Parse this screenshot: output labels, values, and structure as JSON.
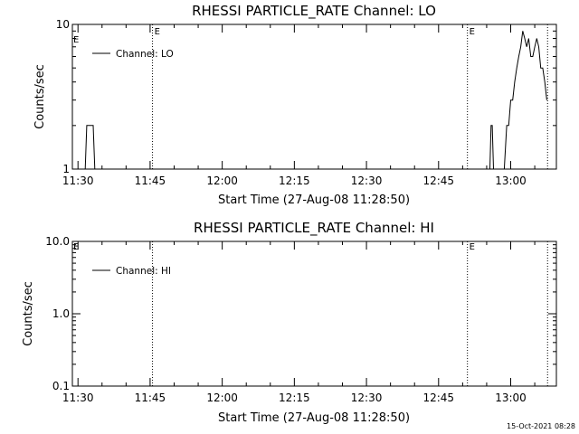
{
  "footer": {
    "timestamp": "15-Oct-2021 08:28"
  },
  "chart_data": [
    {
      "type": "line",
      "title": "RHESSI PARTICLE_RATE Channel: LO",
      "xlabel": "Start Time (27-Aug-08 11:28:50)",
      "ylabel": "Counts/sec",
      "y_scale": "log",
      "xlim": [
        "11:28:50",
        "13:09:30"
      ],
      "ylim": [
        1,
        10
      ],
      "x_ticks": [
        "11:30",
        "11:45",
        "12:00",
        "12:15",
        "12:30",
        "12:45",
        "13:00"
      ],
      "y_ticks": [
        "1",
        "10"
      ],
      "event_lines": [
        {
          "time": "11:45:30",
          "label": "E"
        },
        {
          "time": "12:51:00",
          "label": "E"
        },
        {
          "time": "13:07:40",
          "label": ""
        }
      ],
      "start_marker": "E",
      "legend": {
        "position": "top-left",
        "entries": [
          "Channel: LO"
        ]
      },
      "series": [
        {
          "name": "Channel: LO",
          "x": [
            "11:31:30",
            "11:31:50",
            "11:32:10",
            "11:32:50",
            "11:33:10",
            "11:33:30",
            "12:55:10",
            "12:55:40",
            "12:55:55",
            "12:56:10",
            "12:56:25",
            "12:56:50",
            "12:58:40",
            "12:59:10",
            "12:59:35",
            "13:00:00",
            "13:00:25",
            "13:00:50",
            "13:01:15",
            "13:01:40",
            "13:02:05",
            "13:02:30",
            "13:02:55",
            "13:03:20",
            "13:03:45",
            "13:04:10",
            "13:04:35",
            "13:05:00",
            "13:05:25",
            "13:05:50",
            "13:06:15",
            "13:06:40",
            "13:07:05",
            "13:07:30"
          ],
          "values": [
            1,
            2,
            2,
            2,
            2,
            1,
            1,
            1,
            2,
            2,
            1,
            1,
            1,
            2,
            2,
            3,
            3,
            4,
            5,
            6,
            7,
            9,
            8,
            7,
            8,
            6,
            6,
            7,
            8,
            7,
            5,
            5,
            4,
            3
          ]
        }
      ]
    },
    {
      "type": "line",
      "title": "RHESSI PARTICLE_RATE Channel: HI",
      "xlabel": "Start Time (27-Aug-08 11:28:50)",
      "ylabel": "Counts/sec",
      "y_scale": "log",
      "xlim": [
        "11:28:50",
        "13:09:30"
      ],
      "ylim": [
        0.1,
        10
      ],
      "x_ticks": [
        "11:30",
        "11:45",
        "12:00",
        "12:15",
        "12:30",
        "12:45",
        "13:00"
      ],
      "y_ticks": [
        "0.1",
        "1.0",
        "10.0"
      ],
      "event_lines": [
        {
          "time": "11:45:30",
          "label": ""
        },
        {
          "time": "12:51:00",
          "label": "E"
        },
        {
          "time": "13:07:40",
          "label": ""
        }
      ],
      "start_marker": "E",
      "legend": {
        "position": "top-left",
        "entries": [
          "Channel: HI"
        ]
      },
      "series": [
        {
          "name": "Channel: HI",
          "x": [],
          "values": []
        }
      ]
    }
  ]
}
